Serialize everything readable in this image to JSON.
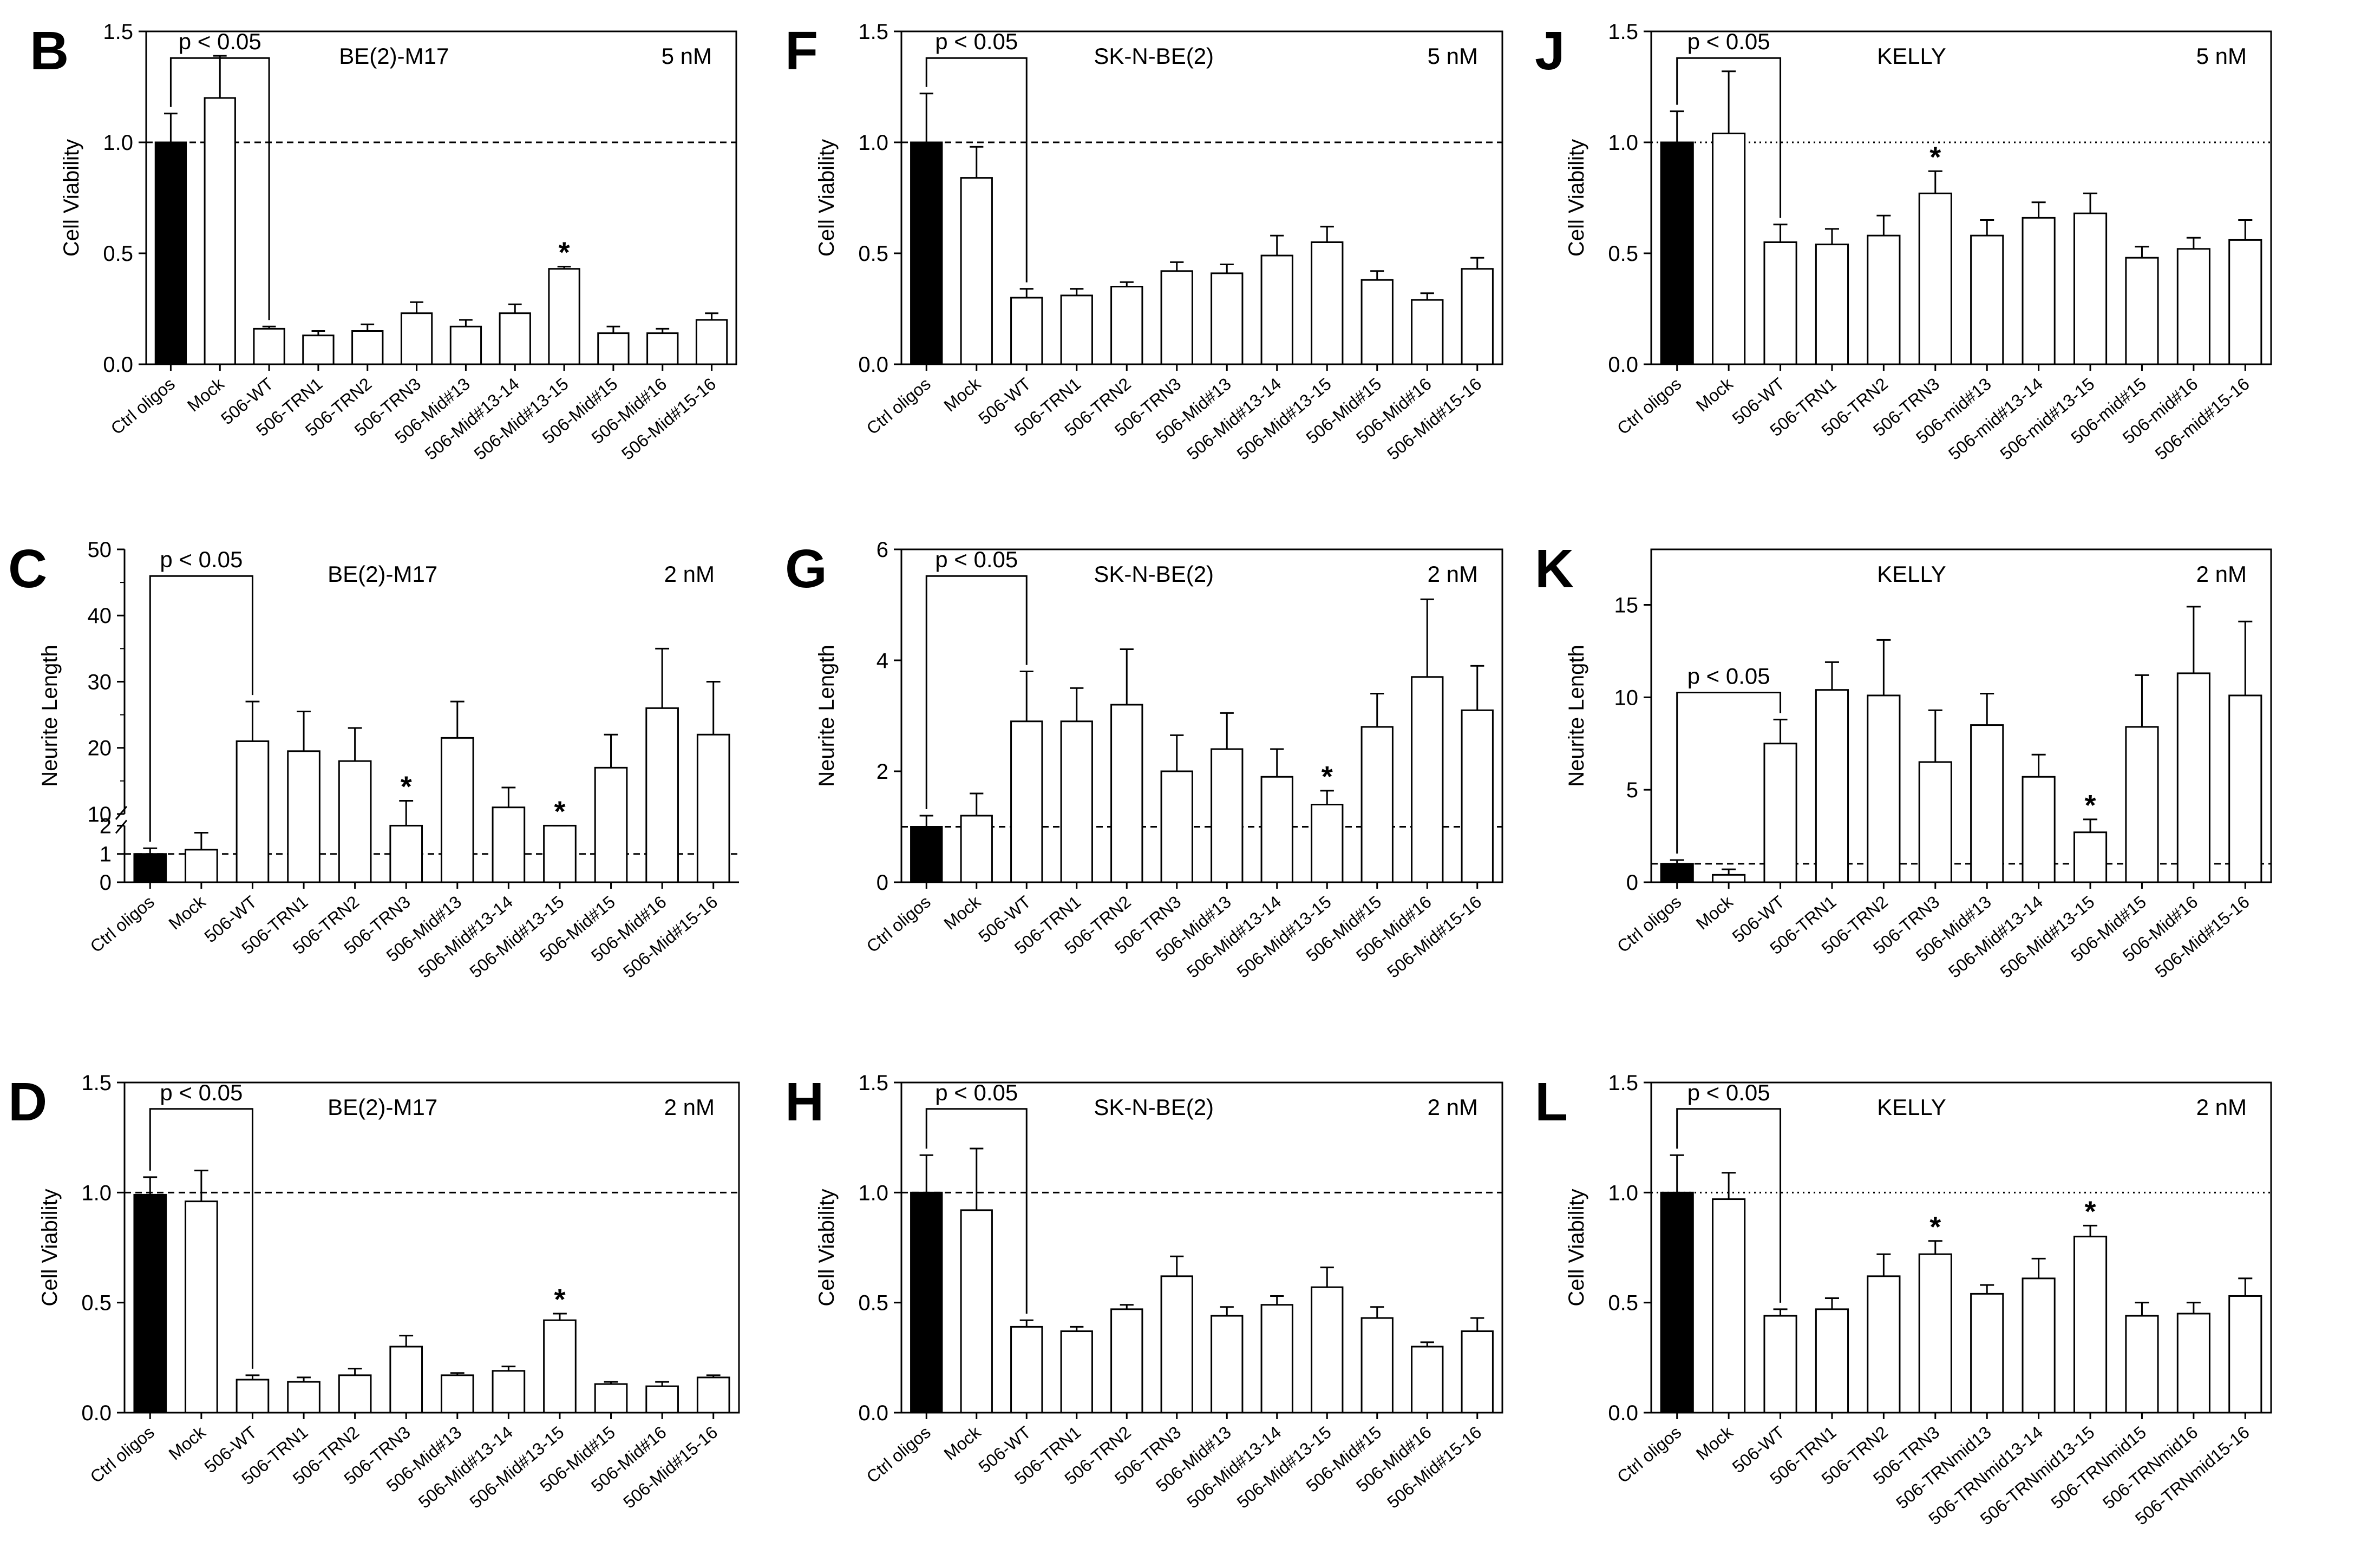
{
  "figure": {
    "description_free": true
  },
  "chart_data": [
    {
      "id": "B",
      "panel_letter": "B",
      "type": "bar",
      "title": "BE(2)-M17",
      "concentration": "5 nM",
      "ylabel": "Cell Viability",
      "ylim": [
        0,
        1.5
      ],
      "yticks": [
        0,
        0.5,
        1.0,
        1.5
      ],
      "ytick_labels": [
        "0.0",
        "0.5",
        "1.0",
        "1.5"
      ],
      "reference_line": 1.0,
      "reference_style": "dashed",
      "categories": [
        "Ctrl oligos",
        "Mock",
        "506-WT",
        "506-TRN1",
        "506-TRN2",
        "506-TRN3",
        "506-Mid#13",
        "506-Mid#13-14",
        "506-Mid#13-15",
        "506-Mid#15",
        "506-Mid#16",
        "506-Mid#15-16"
      ],
      "values": [
        1.0,
        1.2,
        0.16,
        0.13,
        0.15,
        0.23,
        0.17,
        0.23,
        0.43,
        0.14,
        0.14,
        0.2
      ],
      "errors": [
        0.13,
        0.19,
        0.01,
        0.02,
        0.03,
        0.05,
        0.03,
        0.04,
        0.01,
        0.03,
        0.02,
        0.03
      ],
      "significance": [
        8
      ],
      "bracket": {
        "from": 0,
        "to": 2,
        "label": "p < 0.05"
      }
    },
    {
      "id": "F",
      "panel_letter": "F",
      "type": "bar",
      "title": "SK-N-BE(2)",
      "concentration": "5 nM",
      "ylabel": "Cell Viability",
      "ylim": [
        0,
        1.5
      ],
      "yticks": [
        0,
        0.5,
        1.0,
        1.5
      ],
      "ytick_labels": [
        "0.0",
        "0.5",
        "1.0",
        "1.5"
      ],
      "reference_line": 1.0,
      "reference_style": "dashed",
      "categories": [
        "Ctrl oligos",
        "Mock",
        "506-WT",
        "506-TRN1",
        "506-TRN2",
        "506-TRN3",
        "506-Mid#13",
        "506-Mid#13-14",
        "506-Mid#13-15",
        "506-Mid#15",
        "506-Mid#16",
        "506-Mid#15-16"
      ],
      "values": [
        1.0,
        0.84,
        0.3,
        0.31,
        0.35,
        0.42,
        0.41,
        0.49,
        0.55,
        0.38,
        0.29,
        0.43
      ],
      "errors": [
        0.22,
        0.14,
        0.04,
        0.03,
        0.02,
        0.04,
        0.04,
        0.09,
        0.07,
        0.04,
        0.03,
        0.05
      ],
      "significance": [],
      "bracket": {
        "from": 0,
        "to": 2,
        "label": "p < 0.05"
      }
    },
    {
      "id": "J",
      "panel_letter": "J",
      "type": "bar",
      "title": "KELLY",
      "concentration": "5 nM",
      "ylabel": "Cell Viability",
      "ylim": [
        0,
        1.5
      ],
      "yticks": [
        0,
        0.5,
        1.0,
        1.5
      ],
      "ytick_labels": [
        "0.0",
        "0.5",
        "1.0",
        "1.5"
      ],
      "reference_line": 1.0,
      "reference_style": "dotted",
      "categories": [
        "Ctrl oligos",
        "Mock",
        "506-WT",
        "506-TRN1",
        "506-TRN2",
        "506-TRN3",
        "506-mid#13",
        "506-mid#13-14",
        "506-mid#13-15",
        "506-mid#15",
        "506-mid#16",
        "506-mid#15-16"
      ],
      "values": [
        1.0,
        1.04,
        0.55,
        0.54,
        0.58,
        0.77,
        0.58,
        0.66,
        0.68,
        0.48,
        0.52,
        0.56
      ],
      "errors": [
        0.14,
        0.28,
        0.08,
        0.07,
        0.09,
        0.1,
        0.07,
        0.07,
        0.09,
        0.05,
        0.05,
        0.09
      ],
      "significance": [
        5
      ],
      "bracket": {
        "from": 0,
        "to": 2,
        "label": "p < 0.05"
      }
    },
    {
      "id": "C",
      "panel_letter": "C",
      "type": "bar",
      "title": "BE(2)-M17",
      "concentration": "2 nM",
      "ylabel": "Neurite Length",
      "broken_axis": {
        "lower": [
          0,
          2
        ],
        "upper": [
          10,
          50
        ]
      },
      "yticks_lower": [
        0,
        1,
        2
      ],
      "yticks_upper": [
        10,
        20,
        30,
        40,
        50
      ],
      "reference_line": 1.0,
      "reference_style": "dashed",
      "categories": [
        "Ctrl oligos",
        "Mock",
        "506-WT",
        "506-TRN1",
        "506-TRN2",
        "506-TRN3",
        "506-Mid#13",
        "506-Mid#13-14",
        "506-Mid#13-15",
        "506-Mid#15",
        "506-Mid#16",
        "506-Mid#15-16"
      ],
      "values": [
        1.0,
        1.15,
        21,
        19.5,
        18,
        8.5,
        21.5,
        11,
        2.3,
        17,
        26,
        22
      ],
      "errors": [
        0.2,
        0.6,
        6,
        6,
        5,
        3.5,
        5.5,
        3,
        0.2,
        5,
        9,
        8
      ],
      "significance": [
        5,
        8
      ],
      "bracket": {
        "from": 0,
        "to": 2,
        "label": "p < 0.05"
      }
    },
    {
      "id": "G",
      "panel_letter": "G",
      "type": "bar",
      "title": "SK-N-BE(2)",
      "concentration": "2 nM",
      "ylabel": "Neurite Length",
      "ylim": [
        0,
        6
      ],
      "yticks": [
        0,
        2,
        4,
        6
      ],
      "ytick_labels": [
        "0",
        "2",
        "4",
        "6"
      ],
      "reference_line": 1.0,
      "reference_style": "dashed",
      "categories": [
        "Ctrl oligos",
        "Mock",
        "506-WT",
        "506-TRN1",
        "506-TRN2",
        "506-TRN3",
        "506-Mid#13",
        "506-Mid#13-14",
        "506-Mid#13-15",
        "506-Mid#15",
        "506-Mid#16",
        "506-Mid#15-16"
      ],
      "values": [
        1.0,
        1.2,
        2.9,
        2.9,
        3.2,
        2.0,
        2.4,
        1.9,
        1.4,
        2.8,
        3.7,
        3.1
      ],
      "errors": [
        0.2,
        0.4,
        0.9,
        0.6,
        1.0,
        0.65,
        0.65,
        0.5,
        0.25,
        0.6,
        1.4,
        0.8
      ],
      "significance": [
        8
      ],
      "bracket": {
        "from": 0,
        "to": 2,
        "label": "p < 0.05"
      }
    },
    {
      "id": "K",
      "panel_letter": "K",
      "type": "bar",
      "title": "KELLY",
      "concentration": "2 nM",
      "ylabel": "Neurite Length",
      "ylim": [
        0,
        18
      ],
      "yticks": [
        0,
        5,
        10,
        15
      ],
      "ytick_labels": [
        "0",
        "5",
        "10",
        "15"
      ],
      "reference_line": 1.0,
      "reference_style": "dashed",
      "categories": [
        "Ctrl oligos",
        "Mock",
        "506-WT",
        "506-TRN1",
        "506-TRN2",
        "506-TRN3",
        "506-Mid#13",
        "506-Mid#13-14",
        "506-Mid#13-15",
        "506-Mid#15",
        "506-Mid#16",
        "506-Mid#15-16"
      ],
      "values": [
        1.0,
        0.4,
        7.5,
        10.4,
        10.1,
        6.5,
        8.5,
        5.7,
        2.7,
        8.4,
        11.3,
        10.1
      ],
      "errors": [
        0.2,
        0.3,
        1.3,
        1.5,
        3.0,
        2.8,
        1.7,
        1.2,
        0.7,
        2.8,
        3.6,
        4.0
      ],
      "significance": [
        8
      ],
      "bracket": {
        "from": 0,
        "to": 2,
        "label": "p < 0.05",
        "low": true
      }
    },
    {
      "id": "D",
      "panel_letter": "D",
      "type": "bar",
      "title": "BE(2)-M17",
      "concentration": "2 nM",
      "ylabel": "Cell Viability",
      "ylim": [
        0,
        1.5
      ],
      "yticks": [
        0,
        0.5,
        1.0,
        1.5
      ],
      "ytick_labels": [
        "0.0",
        "0.5",
        "1.0",
        "1.5"
      ],
      "reference_line": 1.0,
      "reference_style": "dashed",
      "categories": [
        "Ctrl oligos",
        "Mock",
        "506-WT",
        "506-TRN1",
        "506-TRN2",
        "506-TRN3",
        "506-Mid#13",
        "506-Mid#13-14",
        "506-Mid#13-15",
        "506-Mid#15",
        "506-Mid#16",
        "506-Mid#15-16"
      ],
      "values": [
        0.99,
        0.96,
        0.15,
        0.14,
        0.17,
        0.3,
        0.17,
        0.19,
        0.42,
        0.13,
        0.12,
        0.16
      ],
      "errors": [
        0.08,
        0.14,
        0.02,
        0.02,
        0.03,
        0.05,
        0.01,
        0.02,
        0.03,
        0.01,
        0.02,
        0.01
      ],
      "significance": [
        8
      ],
      "bracket": {
        "from": 0,
        "to": 2,
        "label": "p < 0.05"
      }
    },
    {
      "id": "H",
      "panel_letter": "H",
      "type": "bar",
      "title": "SK-N-BE(2)",
      "concentration": "2 nM",
      "ylabel": "Cell Viability",
      "ylim": [
        0,
        1.5
      ],
      "yticks": [
        0,
        0.5,
        1.0,
        1.5
      ],
      "ytick_labels": [
        "0.0",
        "0.5",
        "1.0",
        "1.5"
      ],
      "reference_line": 1.0,
      "reference_style": "dashed",
      "categories": [
        "Ctrl oligos",
        "Mock",
        "506-WT",
        "506-TRN1",
        "506-TRN2",
        "506-TRN3",
        "506-Mid#13",
        "506-Mid#13-14",
        "506-Mid#13-15",
        "506-Mid#15",
        "506-Mid#16",
        "506-Mid#15-16"
      ],
      "values": [
        1.0,
        0.92,
        0.39,
        0.37,
        0.47,
        0.62,
        0.44,
        0.49,
        0.57,
        0.43,
        0.3,
        0.37
      ],
      "errors": [
        0.17,
        0.28,
        0.03,
        0.02,
        0.02,
        0.09,
        0.04,
        0.04,
        0.09,
        0.05,
        0.02,
        0.06
      ],
      "significance": [],
      "bracket": {
        "from": 0,
        "to": 2,
        "label": "p < 0.05"
      }
    },
    {
      "id": "L",
      "panel_letter": "L",
      "type": "bar",
      "title": "KELLY",
      "concentration": "2 nM",
      "ylabel": "Cell Viability",
      "ylim": [
        0,
        1.5
      ],
      "yticks": [
        0,
        0.5,
        1.0,
        1.5
      ],
      "ytick_labels": [
        "0.0",
        "0.5",
        "1.0",
        "1.5"
      ],
      "reference_line": 1.0,
      "reference_style": "dotted",
      "categories": [
        "Ctrl oligos",
        "Mock",
        "506-WT",
        "506-TRN1",
        "506-TRN2",
        "506-TRN3",
        "506-TRNmid13",
        "506-TRNmid13-14",
        "506-TRNmid13-15",
        "506-TRNmid15",
        "506-TRNmid16",
        "506-TRNmid15-16"
      ],
      "values": [
        1.0,
        0.97,
        0.44,
        0.47,
        0.62,
        0.72,
        0.54,
        0.61,
        0.8,
        0.44,
        0.45,
        0.53
      ],
      "errors": [
        0.17,
        0.12,
        0.03,
        0.05,
        0.1,
        0.06,
        0.04,
        0.09,
        0.05,
        0.06,
        0.05,
        0.08
      ],
      "significance": [
        5,
        8
      ],
      "bracket": {
        "from": 0,
        "to": 2,
        "label": "p < 0.05"
      }
    }
  ]
}
